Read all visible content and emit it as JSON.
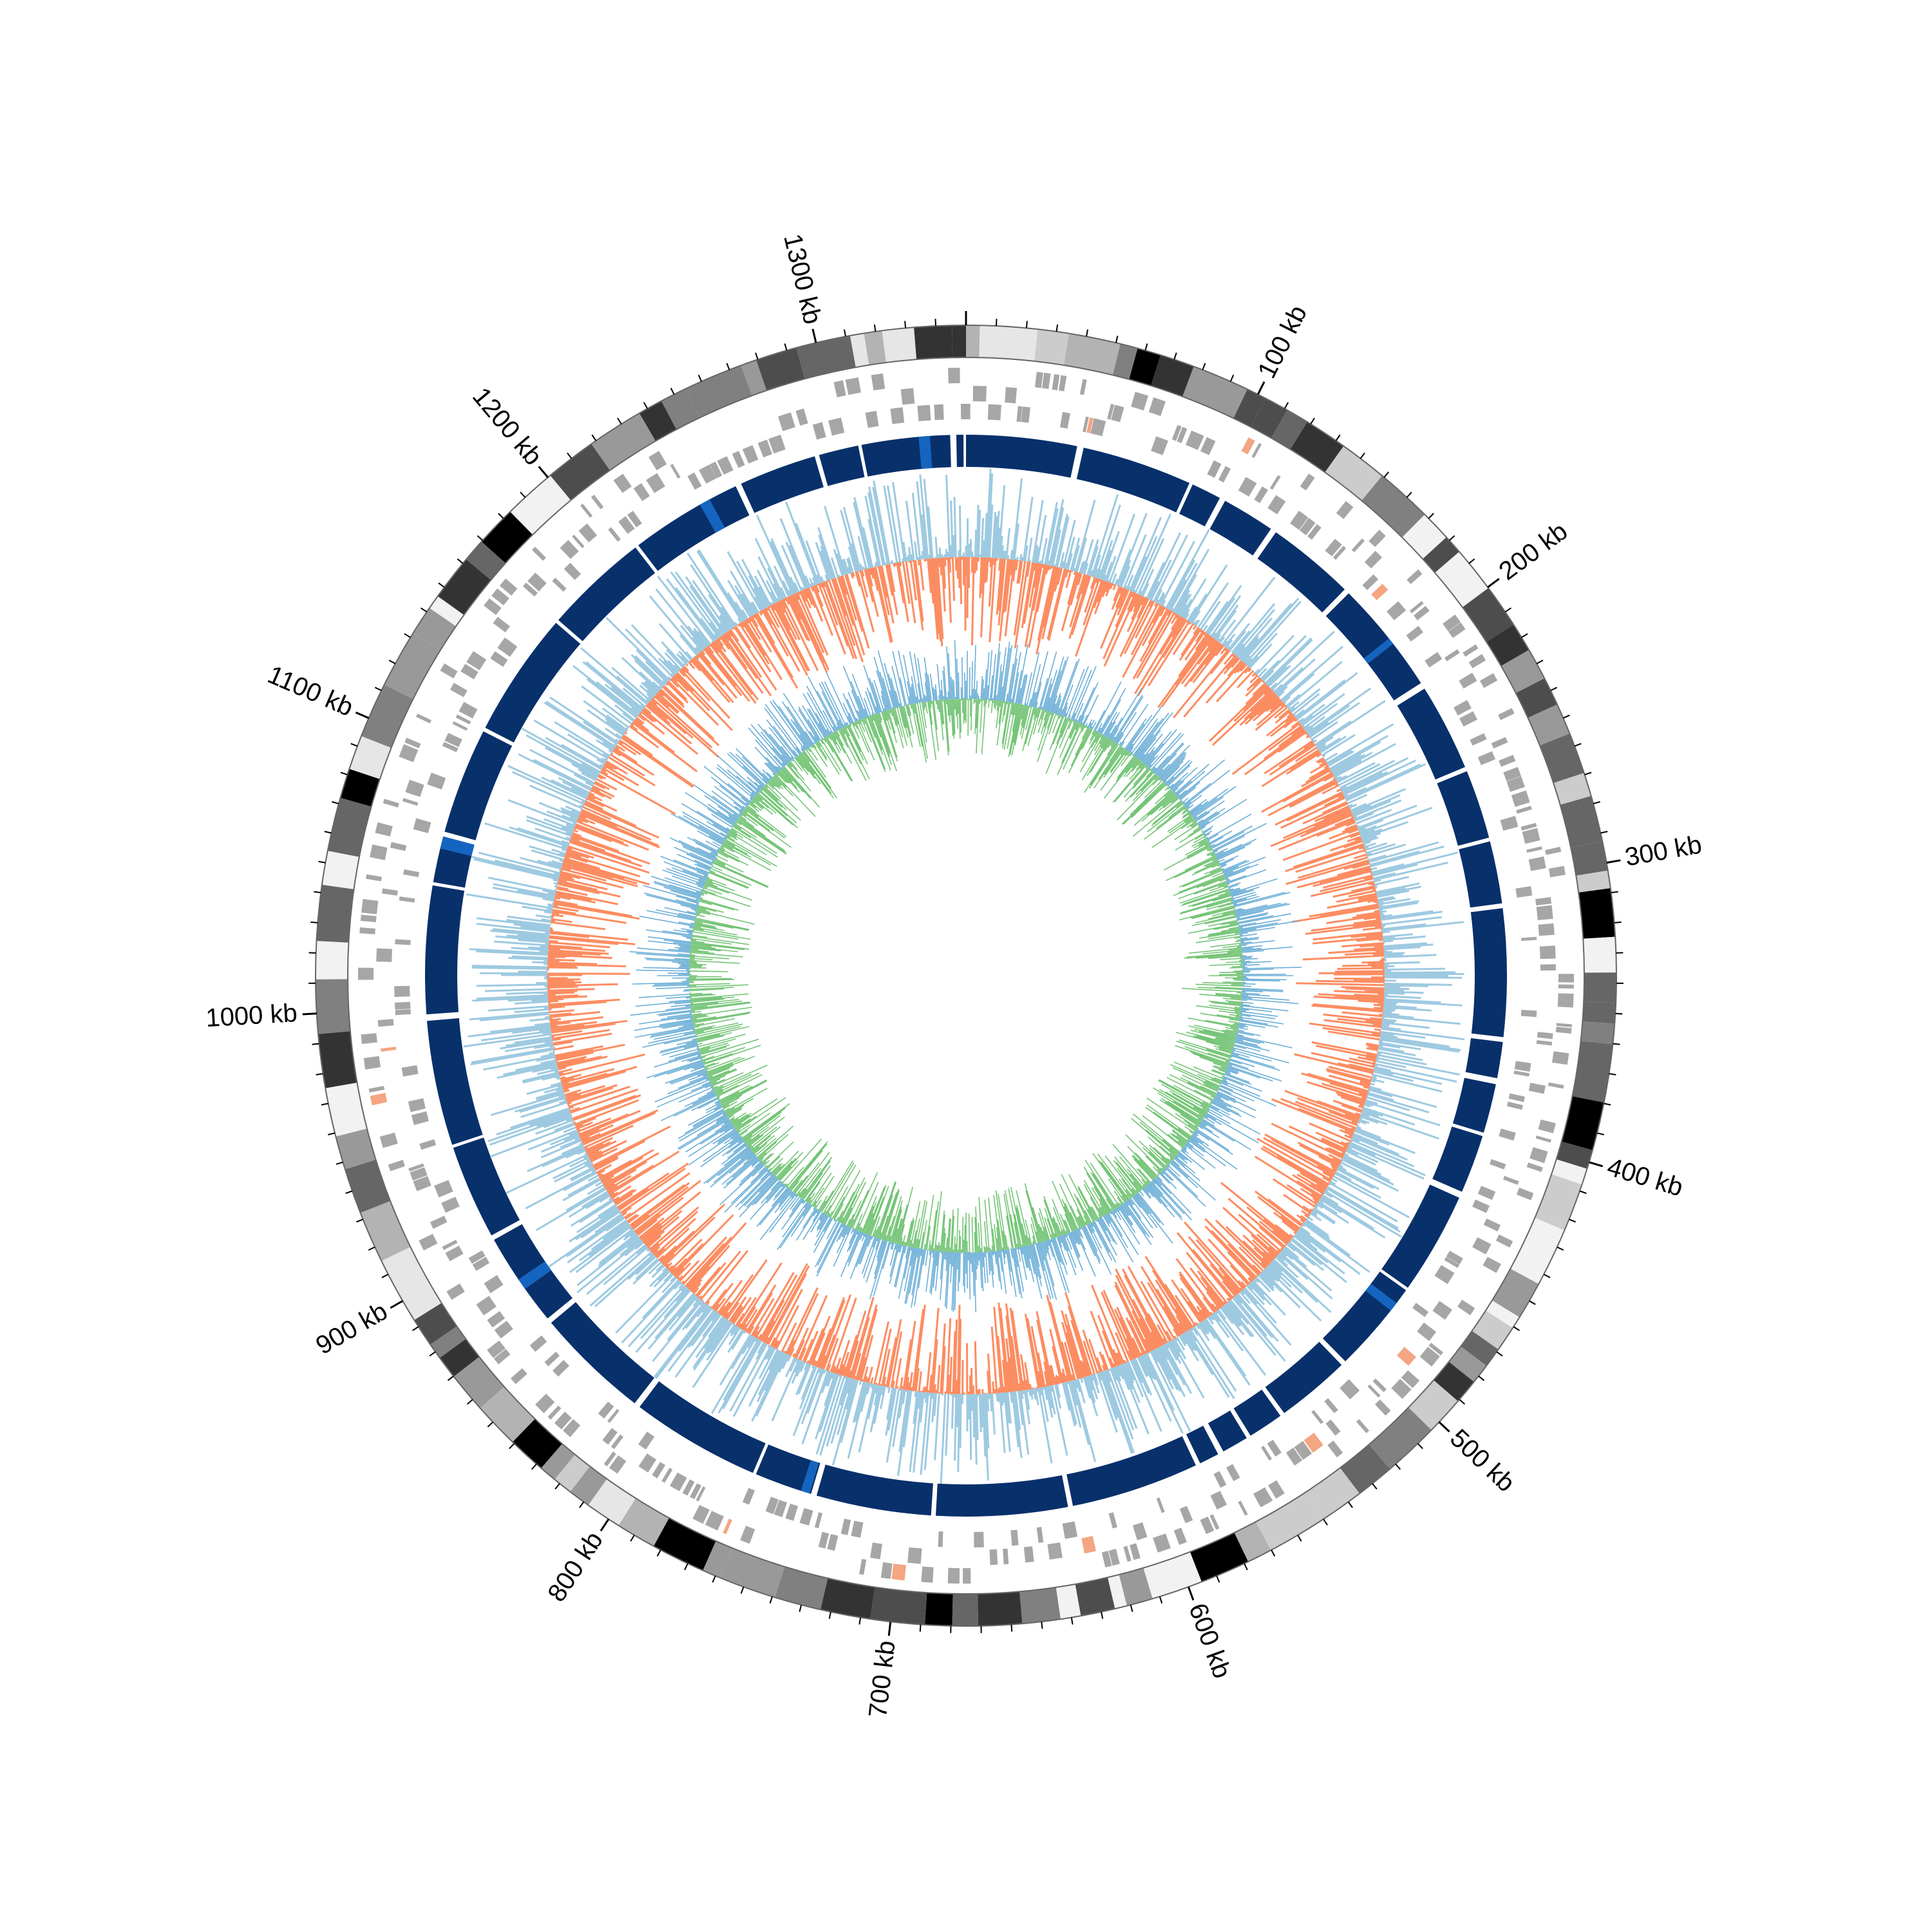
{
  "genome": {
    "length_kb": 1350,
    "tick_labels": [
      {
        "kb": 100,
        "text": "100 kb"
      },
      {
        "kb": 200,
        "text": "200 kb"
      },
      {
        "kb": 300,
        "text": "300 kb"
      },
      {
        "kb": 400,
        "text": "400 kb"
      },
      {
        "kb": 500,
        "text": "500 kb"
      },
      {
        "kb": 600,
        "text": "600 kb"
      },
      {
        "kb": 700,
        "text": "700 kb"
      },
      {
        "kb": 800,
        "text": "800 kb"
      },
      {
        "kb": 900,
        "text": "900 kb"
      },
      {
        "kb": 1000,
        "text": "1000 kb"
      },
      {
        "kb": 1100,
        "text": "1100 kb"
      },
      {
        "kb": 1200,
        "text": "1200 kb"
      },
      {
        "kb": 1300,
        "text": "1300 kb"
      }
    ]
  },
  "tracks": [
    {
      "name": "ideogram-bands",
      "kind": "grayscale-bands"
    },
    {
      "name": "gene-features",
      "kind": "stacked-blocks",
      "color": "#a6a6a6",
      "highlight": "#f4a582"
    },
    {
      "name": "contigs",
      "kind": "segments",
      "color": "#08306b",
      "highlight": "#1565c0"
    },
    {
      "name": "gc-skew",
      "kind": "bidirectional-area",
      "positive_color": "#9ecae1",
      "negative_color": "#fc8d62"
    },
    {
      "name": "gc-content",
      "kind": "bidirectional-lines",
      "outer_color": "#6baed6",
      "inner_color": "#74c476"
    }
  ],
  "colors": {
    "ideogram_palette": [
      "#000000",
      "#333333",
      "#4d4d4d",
      "#666666",
      "#808080",
      "#999999",
      "#b3b3b3",
      "#cccccc",
      "#e6e6e6",
      "#f2f2f2"
    ],
    "outline": "#666666"
  }
}
